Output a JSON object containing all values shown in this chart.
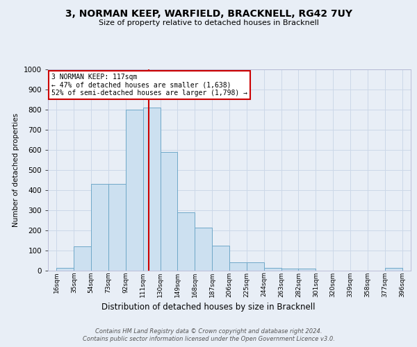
{
  "title": "3, NORMAN KEEP, WARFIELD, BRACKNELL, RG42 7UY",
  "subtitle": "Size of property relative to detached houses in Bracknell",
  "xlabel": "Distribution of detached houses by size in Bracknell",
  "ylabel": "Number of detached properties",
  "bin_edges": [
    16,
    35,
    54,
    73,
    92,
    111,
    130,
    149,
    168,
    187,
    206,
    225,
    244,
    263,
    282,
    301,
    320,
    339,
    358,
    377,
    396
  ],
  "bar_heights": [
    15,
    120,
    430,
    430,
    800,
    810,
    590,
    290,
    215,
    125,
    40,
    40,
    15,
    10,
    10,
    0,
    0,
    0,
    0,
    15
  ],
  "bar_color": "#cce0f0",
  "bar_edge_color": "#6fa8c8",
  "property_line_x": 117,
  "annotation_line1": "3 NORMAN KEEP: 117sqm",
  "annotation_line2": "← 47% of detached houses are smaller (1,638)",
  "annotation_line3": "52% of semi-detached houses are larger (1,798) →",
  "annotation_box_facecolor": "#ffffff",
  "annotation_box_edgecolor": "#cc0000",
  "annotation_line_color": "#cc0000",
  "grid_color": "#ccd8e8",
  "background_color": "#e8eef6",
  "plot_bg_color": "#e8eef6",
  "ylim": [
    0,
    1000
  ],
  "yticks": [
    0,
    100,
    200,
    300,
    400,
    500,
    600,
    700,
    800,
    900,
    1000
  ],
  "footer_line1": "Contains HM Land Registry data © Crown copyright and database right 2024.",
  "footer_line2": "Contains public sector information licensed under the Open Government Licence v3.0."
}
